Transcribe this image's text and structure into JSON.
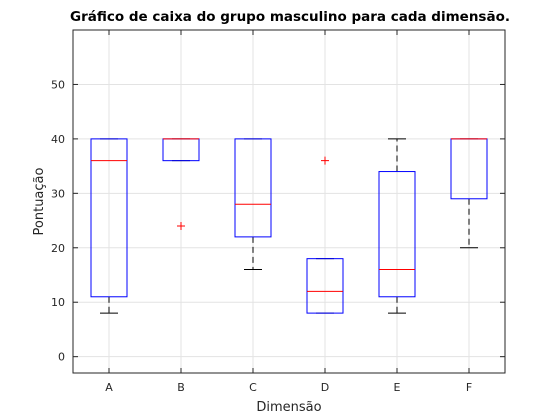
{
  "chart_data": {
    "type": "boxplot",
    "title": "Gráfico de caixa do grupo masculino para cada dimensão.",
    "xlabel": "Dimensão",
    "ylabel": "Pontuação",
    "ylim": [
      -3,
      60
    ],
    "yticks": [
      0,
      10,
      20,
      30,
      40,
      50
    ],
    "grid": true,
    "colors": {
      "box": "#0000ff",
      "median": "#ff0000",
      "whisker": "#000000",
      "outlier": "#ff0000",
      "grid": "#e3e3e3",
      "axes": "#262626"
    },
    "categories": [
      "A",
      "B",
      "C",
      "D",
      "E",
      "F"
    ],
    "boxes": [
      {
        "category": "A",
        "whisker_low": 8,
        "q1": 11,
        "median": 36,
        "q3": 40,
        "whisker_high": 40,
        "outliers": []
      },
      {
        "category": "B",
        "whisker_low": 36,
        "q1": 36,
        "median": 40,
        "q3": 40,
        "whisker_high": 40,
        "outliers": [
          24
        ]
      },
      {
        "category": "C",
        "whisker_low": 16,
        "q1": 22,
        "median": 28,
        "q3": 40,
        "whisker_high": 40,
        "outliers": []
      },
      {
        "category": "D",
        "whisker_low": 8,
        "q1": 8,
        "median": 12,
        "q3": 18,
        "whisker_high": 18,
        "outliers": [
          36
        ]
      },
      {
        "category": "E",
        "whisker_low": 8,
        "q1": 11,
        "median": 16,
        "q3": 34,
        "whisker_high": 40,
        "outliers": []
      },
      {
        "category": "F",
        "whisker_low": 20,
        "q1": 29,
        "median": 40,
        "q3": 40,
        "whisker_high": 40,
        "outliers": []
      }
    ]
  }
}
